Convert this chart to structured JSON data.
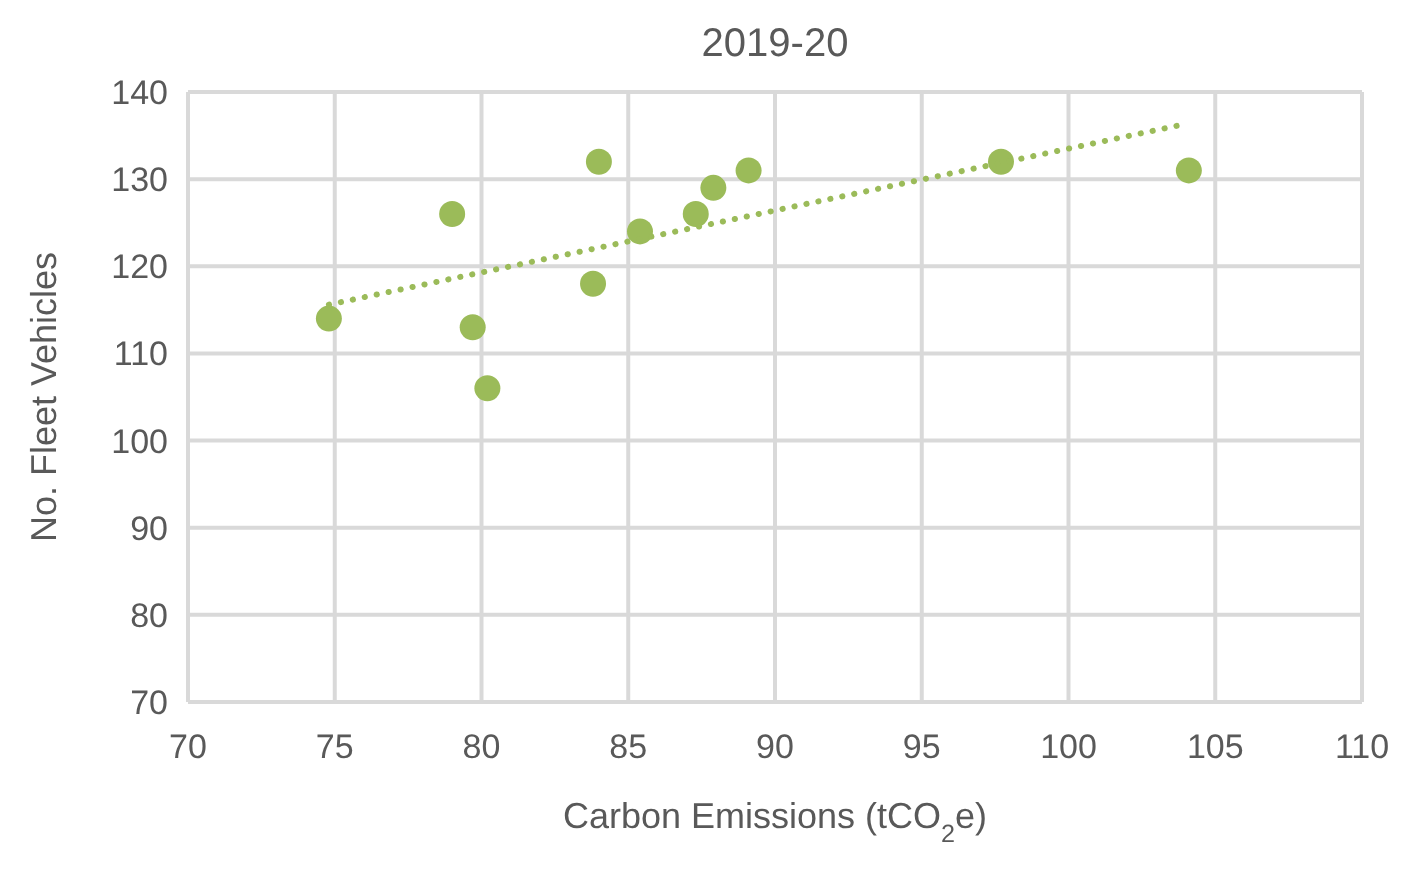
{
  "chart_data": {
    "type": "scatter",
    "title": "2019-20",
    "xlabel": "Carbon Emissions (tCO$_{2}$e)",
    "ylabel": "No. Fleet Vehicles",
    "x": [
      74.8,
      79.0,
      79.7,
      80.2,
      83.8,
      84.0,
      85.4,
      87.3,
      87.9,
      89.1,
      97.7,
      104.1
    ],
    "series": [
      {
        "color": "#9bbb59",
        "marker": "circle",
        "values": [
          114,
          126,
          113,
          106,
          118,
          132,
          124,
          126,
          129,
          131,
          132,
          131
        ]
      },
      {
        "type": "line",
        "color": "#9bbb59",
        "line_style": "dotted",
        "x": [
          74.8,
          103.8
        ],
        "values": [
          115.6,
          136.2
        ]
      }
    ],
    "xlim": [
      70,
      110
    ],
    "xticks": [
      70,
      75,
      80,
      85,
      90,
      95,
      100,
      105,
      110
    ],
    "ylim": [
      70,
      140
    ],
    "yticks": [
      70,
      80,
      90,
      100,
      110,
      120,
      130,
      140
    ],
    "grid": true
  }
}
